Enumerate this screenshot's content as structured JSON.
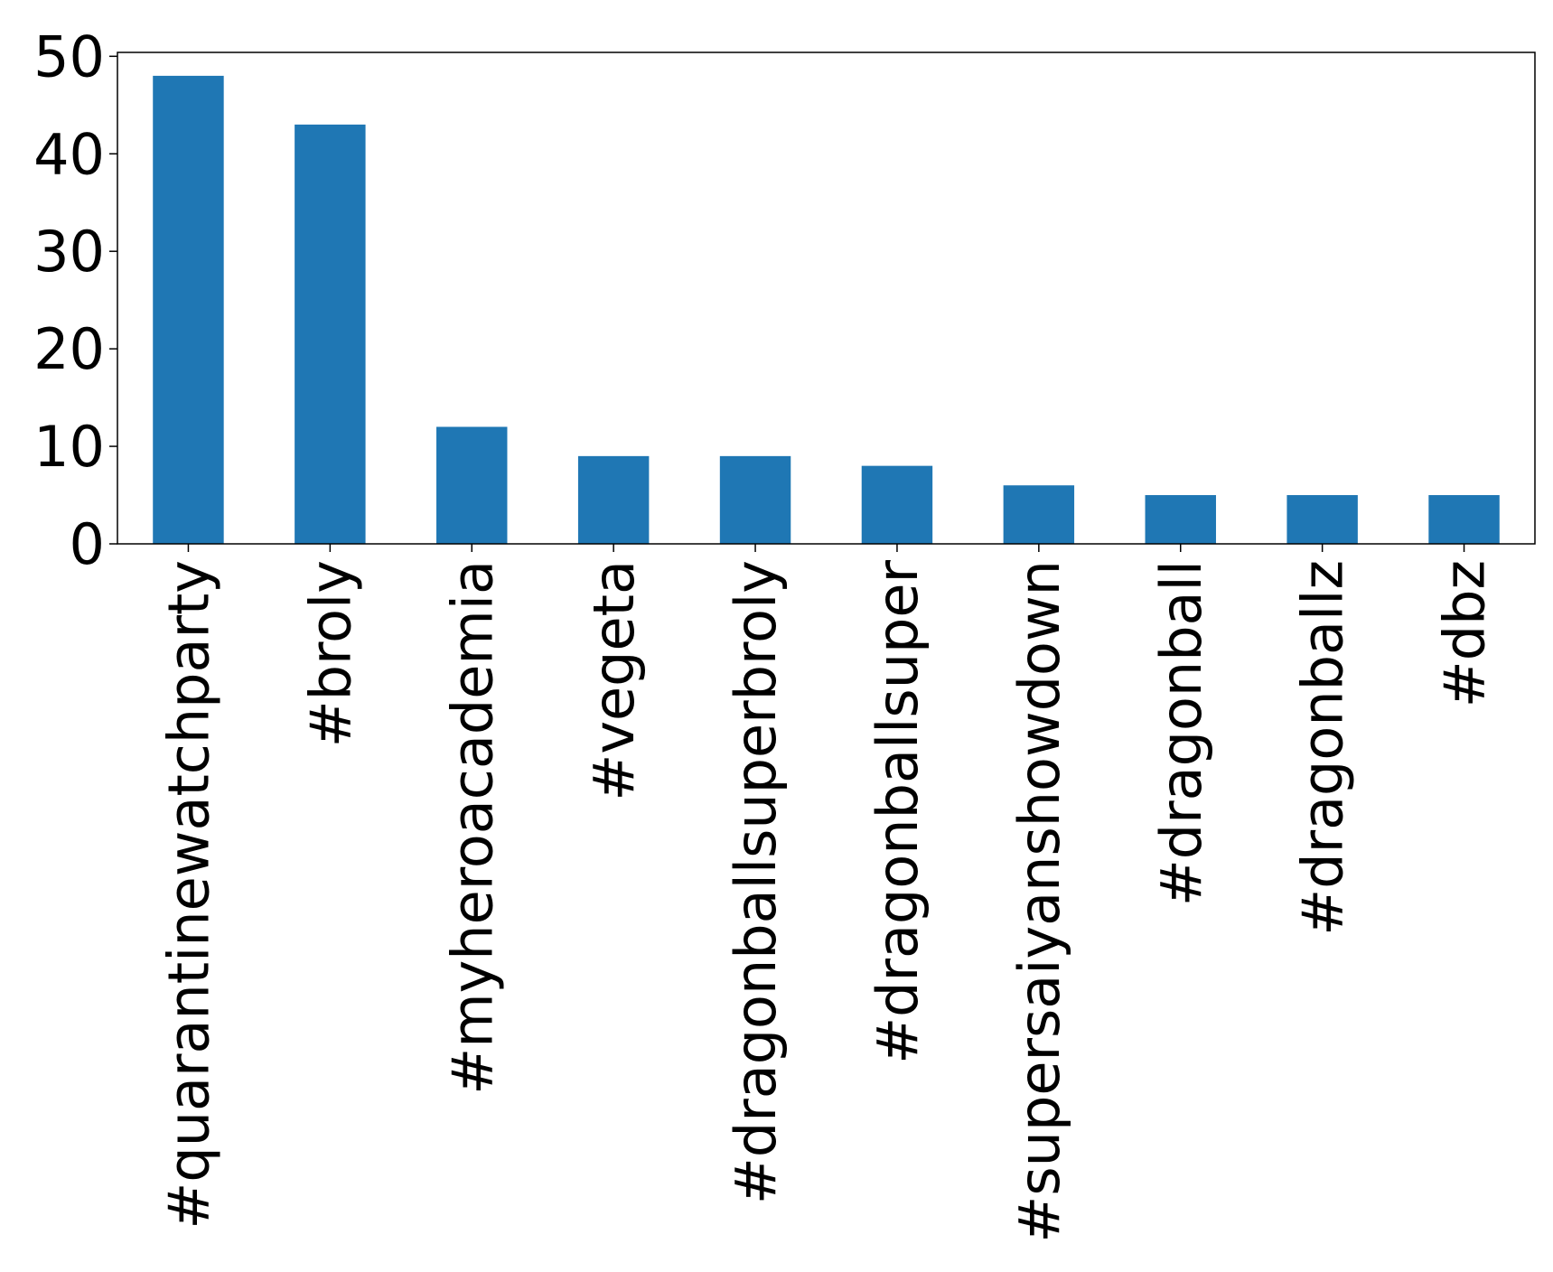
{
  "chart_data": {
    "type": "bar",
    "title": "",
    "xlabel": "",
    "ylabel": "",
    "categories": [
      "#quarantinewatchparty",
      "#broly",
      "#myheroacademia",
      "#vegeta",
      "#dragonballsuperbroly",
      "#dragonballsuper",
      "#supersaiyanshowdown",
      "#dragonball",
      "#dragonballz",
      "#dbz"
    ],
    "values": [
      48,
      43,
      12,
      9,
      9,
      8,
      6,
      5,
      5,
      5
    ],
    "ylim": [
      0,
      50.4
    ],
    "yticks": [
      0,
      10,
      20,
      30,
      40,
      50
    ],
    "grid": false,
    "legend": "none",
    "colors": {
      "bar": "#1f77b4",
      "axis": "#000000",
      "background": "#ffffff"
    }
  }
}
